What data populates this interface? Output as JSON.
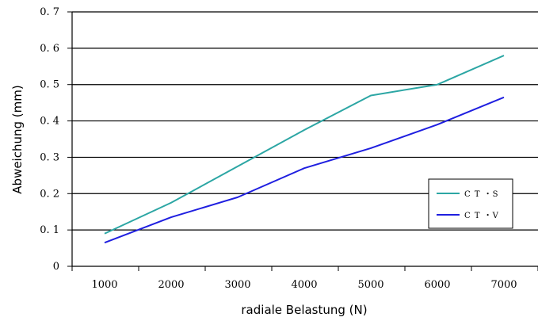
{
  "chart_data": {
    "type": "line",
    "title": "",
    "xlabel": "radiale Belastung (N)",
    "ylabel": "Abweichung (mm)",
    "ylim": [
      0,
      0.7
    ],
    "x": [
      1000,
      2000,
      3000,
      4000,
      5000,
      6000,
      7000
    ],
    "x_tick_labels": [
      "1000",
      "2000",
      "3000",
      "4000",
      "5000",
      "6000",
      "7000"
    ],
    "y_tick_labels": [
      "0",
      "0. 1",
      "0. 2",
      "0. 3",
      "0. 4",
      "0. 5",
      "0. 6",
      "0. 7"
    ],
    "grid": "horizontal",
    "legend_position": "right",
    "series": [
      {
        "name": "C T ・S",
        "color": "#2ca6a4",
        "values": [
          0.09,
          0.175,
          0.275,
          0.375,
          0.47,
          0.5,
          0.58
        ]
      },
      {
        "name": "C T ・V",
        "color": "#1f1fe0",
        "values": [
          0.065,
          0.135,
          0.19,
          0.27,
          0.325,
          0.39,
          0.465
        ]
      }
    ]
  }
}
